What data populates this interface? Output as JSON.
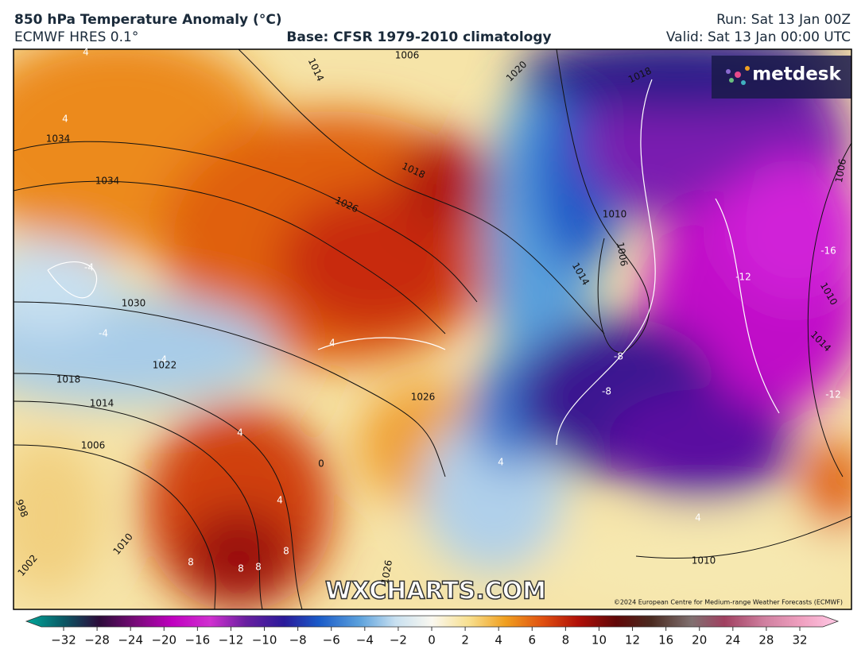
{
  "header": {
    "title": "850 hPa Temperature Anomaly (°C)",
    "model": "ECMWF HRES 0.1°",
    "base": "Base: CFSR 1979-2010 climatology",
    "run": "Run: Sat 13 Jan 00Z",
    "valid": "Valid: Sat 13 Jan 00:00 UTC"
  },
  "logo": "metdesk",
  "watermark": "WXCHARTS.COM",
  "copyright": "©2024 European Centre for Medium-range Weather Forecasts (ECMWF)",
  "isobar_labels": [
    "1034",
    "1034",
    "1030",
    "1022",
    "1018",
    "1014",
    "1006",
    "998",
    "1002",
    "1010",
    "1026",
    "1018",
    "1014",
    "1006",
    "1020",
    "1018",
    "1010",
    "1006",
    "1014",
    "1026",
    "1010",
    "1006",
    "1010",
    "1014",
    "1026"
  ],
  "anomaly_labels": [
    "4",
    "4",
    "-4",
    "-4",
    "-4",
    "4",
    "-16",
    "-12",
    "-8",
    "-8",
    "-12",
    "4",
    "8",
    "8",
    "8",
    "8",
    "4",
    "4",
    "0",
    "4"
  ],
  "colorbar": {
    "ticks": [
      "−32",
      "−28",
      "−24",
      "−20",
      "−16",
      "−12",
      "−10",
      "−8",
      "−6",
      "−4",
      "−2",
      "0",
      "2",
      "4",
      "6",
      "8",
      "10",
      "12",
      "16",
      "20",
      "24",
      "28",
      "32"
    ]
  }
}
